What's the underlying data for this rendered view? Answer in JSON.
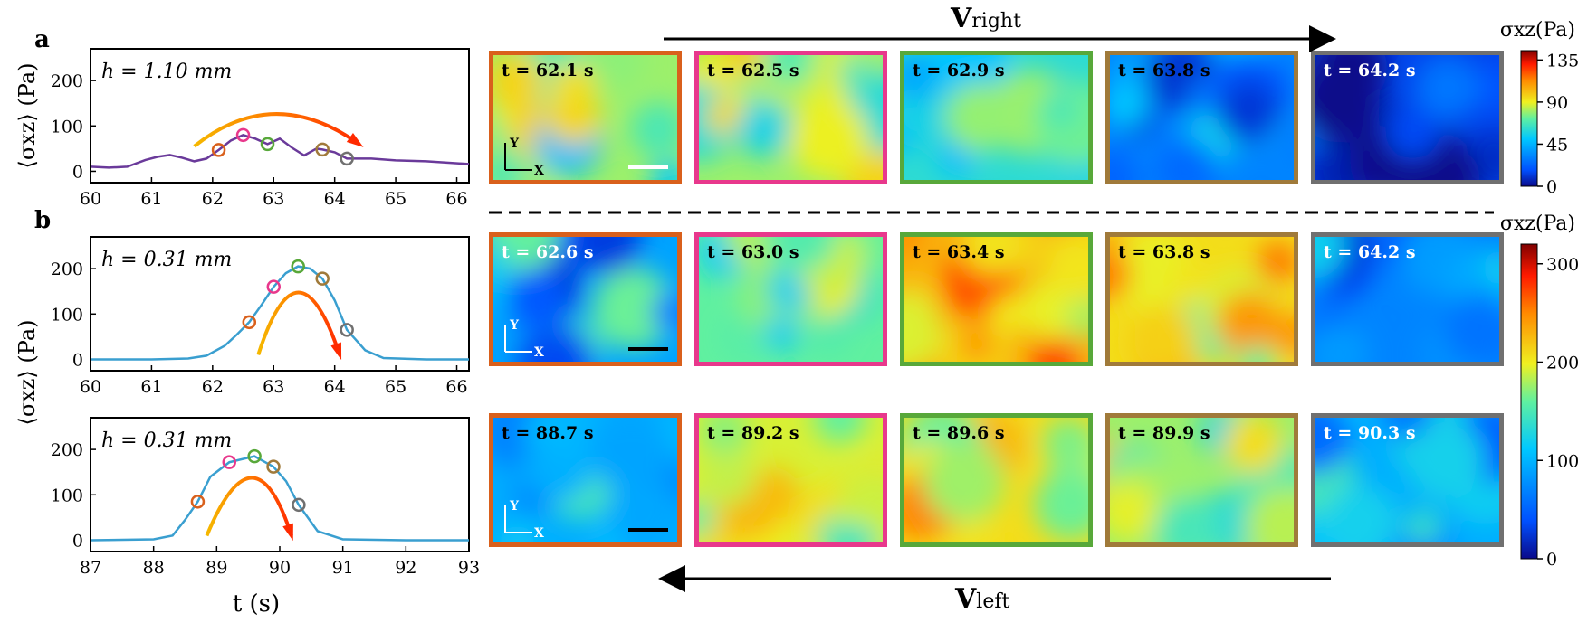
{
  "panel_labels": {
    "a": "a",
    "b": "b"
  },
  "ylabel": "⟨σxz⟩ (Pa)",
  "xlabel": "t (s)",
  "velocity": {
    "right": "V",
    "right_sub": "right",
    "left": "V",
    "left_sub": "left"
  },
  "colorbars": [
    {
      "title": "σxz(Pa)",
      "ticks": [
        0,
        45,
        90,
        135
      ],
      "range": [
        0,
        145
      ]
    },
    {
      "title": "σxz(Pa)",
      "ticks": [
        0,
        100,
        200,
        300
      ],
      "range": [
        0,
        320
      ]
    }
  ],
  "marker_colors": [
    "#d9601c",
    "#e8388c",
    "#58a83a",
    "#a07a3a",
    "#707070"
  ],
  "chart_data": [
    {
      "type": "line",
      "annotation": "h = 1.10 mm",
      "xlim": [
        60,
        66.2
      ],
      "ylim": [
        -25,
        270
      ],
      "xticks": [
        60,
        61,
        62,
        63,
        64,
        65,
        66
      ],
      "yticks": [
        0,
        100,
        200
      ],
      "line_color": "#6a3a9a",
      "series": [
        {
          "x": [
            60,
            60.3,
            60.6,
            60.9,
            61.1,
            61.3,
            61.5,
            61.7,
            61.9,
            62.1,
            62.3,
            62.5,
            62.7,
            62.9,
            63.1,
            63.3,
            63.5,
            63.7,
            63.8,
            64.0,
            64.2,
            64.6,
            65.0,
            65.5,
            66.2
          ],
          "y": [
            10,
            8,
            10,
            25,
            32,
            36,
            30,
            22,
            28,
            47,
            68,
            80,
            72,
            60,
            72,
            52,
            35,
            50,
            48,
            42,
            28,
            28,
            24,
            22,
            16
          ]
        }
      ],
      "markers": [
        {
          "x": 62.1,
          "y": 47
        },
        {
          "x": 62.5,
          "y": 80
        },
        {
          "x": 62.9,
          "y": 60
        },
        {
          "x": 63.8,
          "y": 48
        },
        {
          "x": 64.2,
          "y": 28
        }
      ],
      "arrow": "clockwise-arc"
    },
    {
      "type": "line",
      "annotation": "h = 0.31 mm",
      "xlim": [
        60,
        66.2
      ],
      "ylim": [
        -25,
        270
      ],
      "xticks": [
        60,
        61,
        62,
        63,
        64,
        65,
        66
      ],
      "yticks": [
        0,
        100,
        200
      ],
      "line_color": "#3a9fd0",
      "series": [
        {
          "x": [
            60,
            61,
            61.6,
            61.9,
            62.2,
            62.4,
            62.6,
            62.8,
            63.0,
            63.2,
            63.4,
            63.6,
            63.8,
            64.0,
            64.2,
            64.5,
            64.8,
            65.5,
            66.2
          ],
          "y": [
            0,
            0,
            2,
            8,
            30,
            55,
            82,
            120,
            160,
            190,
            205,
            200,
            178,
            130,
            65,
            20,
            3,
            0,
            0
          ]
        }
      ],
      "markers": [
        {
          "x": 62.6,
          "y": 82
        },
        {
          "x": 63.0,
          "y": 160
        },
        {
          "x": 63.4,
          "y": 205
        },
        {
          "x": 63.8,
          "y": 178
        },
        {
          "x": 64.2,
          "y": 65
        }
      ],
      "arrow": "clockwise-arc"
    },
    {
      "type": "line",
      "annotation": "h = 0.31 mm",
      "xlim": [
        87,
        93
      ],
      "ylim": [
        -25,
        270
      ],
      "xticks": [
        87,
        88,
        89,
        90,
        91,
        92,
        93
      ],
      "yticks": [
        0,
        100,
        200
      ],
      "line_color": "#3a9fd0",
      "series": [
        {
          "x": [
            87,
            88,
            88.3,
            88.5,
            88.7,
            88.9,
            89.2,
            89.6,
            89.9,
            90.1,
            90.3,
            90.6,
            91.0,
            92,
            93
          ],
          "y": [
            0,
            2,
            10,
            45,
            85,
            140,
            172,
            185,
            162,
            130,
            78,
            20,
            2,
            0,
            0
          ]
        }
      ],
      "markers": [
        {
          "x": 88.7,
          "y": 85
        },
        {
          "x": 89.2,
          "y": 172
        },
        {
          "x": 89.6,
          "y": 185
        },
        {
          "x": 89.9,
          "y": 162
        },
        {
          "x": 90.3,
          "y": 78
        }
      ],
      "arrow": "clockwise-arc"
    },
    {
      "type": "heatmap",
      "rows": [
        {
          "times": [
            "t = 62.1 s",
            "t = 62.5 s",
            "t = 62.9 s",
            "t = 63.8 s",
            "t = 64.2 s"
          ],
          "levels": [
            0.55,
            0.55,
            0.42,
            0.22,
            0.1
          ],
          "text_colors": [
            "#000",
            "#000",
            "#000",
            "#000",
            "#fff"
          ]
        },
        {
          "times": [
            "t = 62.6 s",
            "t = 63.0 s",
            "t = 63.4 s",
            "t = 63.8 s",
            "t = 64.2 s"
          ],
          "levels": [
            0.28,
            0.5,
            0.72,
            0.65,
            0.22
          ],
          "text_colors": [
            "#fff",
            "#000",
            "#000",
            "#000",
            "#fff"
          ]
        },
        {
          "times": [
            "t = 88.7 s",
            "t = 89.2 s",
            "t = 89.6 s",
            "t = 89.9 s",
            "t = 90.3 s"
          ],
          "levels": [
            0.3,
            0.6,
            0.65,
            0.55,
            0.3
          ],
          "text_colors": [
            "#000",
            "#000",
            "#000",
            "#000",
            "#fff"
          ]
        }
      ],
      "axis_labels": {
        "x": "X",
        "y": "Y"
      }
    }
  ]
}
